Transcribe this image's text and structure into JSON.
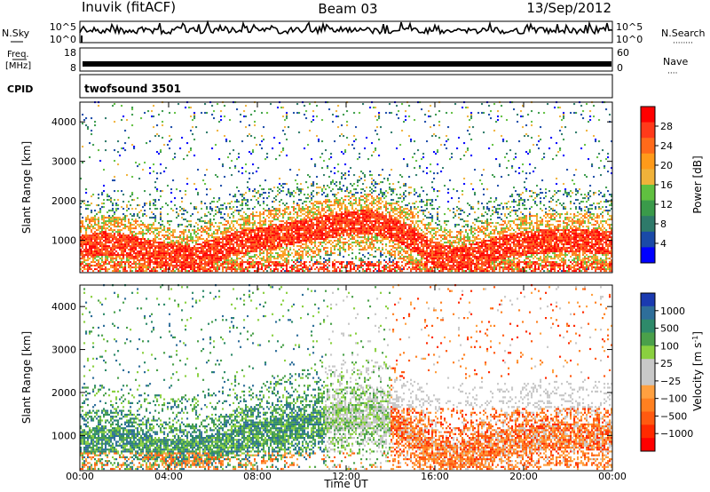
{
  "header": {
    "station": "Inuvik (fitACF)",
    "beam": "Beam 03",
    "date": "13/Sep/2012"
  },
  "noise_panel": {
    "left_label": "N.Sky",
    "right_label": "N.Search",
    "right_dots": "········",
    "left_ticks": [
      "10^5",
      "10^0"
    ],
    "right_ticks": [
      "10^5",
      "10^0"
    ]
  },
  "freq_panel": {
    "left_label_1": "Freq.",
    "left_label_2": "[MHz]",
    "right_label": "Nave",
    "right_dots": "····",
    "left_ticks": [
      "18",
      "8"
    ],
    "right_ticks": [
      "60",
      "0"
    ]
  },
  "cpid_panel": {
    "label": "CPID",
    "value": "twofsound 3501"
  },
  "axes": {
    "ylabel": "Slant Range [km]",
    "xlabel": "Time UT",
    "y_ticks": [
      "4000",
      "3000",
      "2000",
      "1000"
    ],
    "x_ticks": [
      "00:00",
      "04:00",
      "08:00",
      "12:00",
      "16:00",
      "20:00",
      "00:00"
    ]
  },
  "colorbars": {
    "power": {
      "label": "Power [dB]",
      "ticks": [
        "28",
        "24",
        "20",
        "16",
        "12",
        "8",
        "4"
      ],
      "colors": [
        "#ff0000",
        "#ff3a1a",
        "#ff6a1a",
        "#ff9a1a",
        "#f0b23a",
        "#60c040",
        "#3a9a4a",
        "#2e7a6a",
        "#1a4aa8",
        "#0000ff"
      ]
    },
    "velocity": {
      "label": "Velocity [m s",
      "label_sup": "-1",
      "label_end": "]",
      "ticks": [
        "1000",
        "500",
        "100",
        "25",
        "−25",
        "−100",
        "−500",
        "−1000"
      ],
      "colors": [
        "#1a3ab0",
        "#2e6e9a",
        "#2e8a6a",
        "#4aa04a",
        "#8ad040",
        "#c8c8c8",
        "#c8c8c8",
        "#ffa040",
        "#ff8020",
        "#ff5a10",
        "#ff2a00",
        "#ff0000"
      ]
    }
  },
  "chart_data": [
    {
      "type": "heatmap",
      "name": "power",
      "xlabel": "Time UT",
      "ylabel": "Slant Range [km]",
      "xlim": [
        "00:00",
        "24:00"
      ],
      "ylim": [
        180,
        4500
      ],
      "colorbar_label": "Power [dB]",
      "colorbar_range": [
        0,
        30
      ],
      "band_center_km": [
        [
          0,
          800
        ],
        [
          1,
          900
        ],
        [
          2,
          850
        ],
        [
          3,
          700
        ],
        [
          4,
          600
        ],
        [
          5,
          550
        ],
        [
          6,
          700
        ],
        [
          7,
          900
        ],
        [
          8,
          1000
        ],
        [
          9,
          1100
        ],
        [
          10,
          1200
        ],
        [
          11,
          1300
        ],
        [
          12,
          1400
        ],
        [
          13,
          1450
        ],
        [
          14,
          1300
        ],
        [
          15,
          1000
        ],
        [
          16,
          600
        ],
        [
          17,
          500
        ],
        [
          18,
          650
        ],
        [
          19,
          800
        ],
        [
          20,
          900
        ],
        [
          21,
          950
        ],
        [
          22,
          950
        ],
        [
          23,
          950
        ],
        [
          24,
          900
        ]
      ]
    },
    {
      "type": "heatmap",
      "name": "velocity",
      "xlabel": "Time UT",
      "ylabel": "Slant Range [km]",
      "xlim": [
        "00:00",
        "24:00"
      ],
      "ylim": [
        180,
        4500
      ],
      "colorbar_label": "Velocity [m s-1]",
      "colorbar_ticks": [
        1000,
        500,
        100,
        25,
        -25,
        -100,
        -500,
        -1000
      ]
    }
  ]
}
